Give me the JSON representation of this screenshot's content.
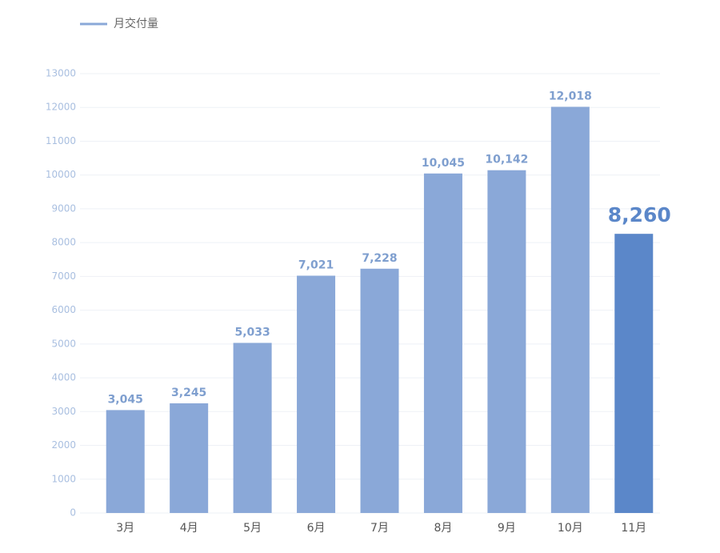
{
  "chart_data": {
    "type": "bar",
    "categories": [
      "3月",
      "4月",
      "5月",
      "6月",
      "7月",
      "8月",
      "9月",
      "10月",
      "11月"
    ],
    "series": [
      {
        "name": "月交付量",
        "color": "#8aa8d8",
        "colors": [
          "#8aa8d8",
          "#8aa8d8",
          "#8aa8d8",
          "#8aa8d8",
          "#8aa8d8",
          "#8aa8d8",
          "#8aa8d8",
          "#8aa8d8",
          "#5b87c9"
        ],
        "values": [
          3045,
          3245,
          5033,
          7021,
          7228,
          10045,
          10142,
          12018,
          8260
        ],
        "value_labels": [
          "3,045",
          "3,245",
          "5,033",
          "7,021",
          "7,228",
          "10,045",
          "10,142",
          "12,018",
          "8,260"
        ]
      }
    ],
    "ylim": [
      0,
      13000
    ],
    "yticks": [
      0,
      1000,
      2000,
      3000,
      4000,
      5000,
      6000,
      7000,
      8000,
      9000,
      10000,
      11000,
      12000,
      13000
    ],
    "grid": true
  }
}
